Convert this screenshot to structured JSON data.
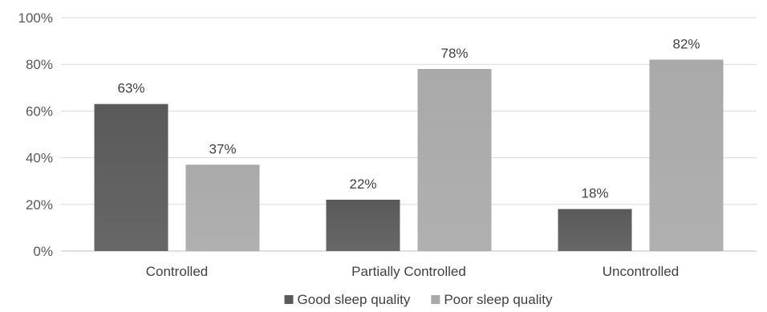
{
  "chart_data": {
    "type": "bar",
    "categories": [
      "Controlled",
      "Partially Controlled",
      "Uncontrolled"
    ],
    "series": [
      {
        "name": "Good sleep quality",
        "values": [
          63,
          22,
          18
        ],
        "labels": [
          "63%",
          "22%",
          "18%"
        ],
        "color": "#5a5a5a"
      },
      {
        "name": "Poor sleep quality",
        "values": [
          37,
          78,
          82
        ],
        "labels": [
          "37%",
          "78%",
          "82%"
        ],
        "color": "#a9a9a9"
      }
    ],
    "yticks": [
      0,
      20,
      40,
      60,
      80,
      100
    ],
    "ytick_labels": [
      "0%",
      "20%",
      "40%",
      "60%",
      "80%",
      "100%"
    ],
    "ylim": [
      0,
      100
    ],
    "grid": true,
    "legend_position": "bottom",
    "title": "",
    "xlabel": "",
    "ylabel": "",
    "gridline_color": "#d9d9d9",
    "axis_color": "#bfbfbf"
  }
}
